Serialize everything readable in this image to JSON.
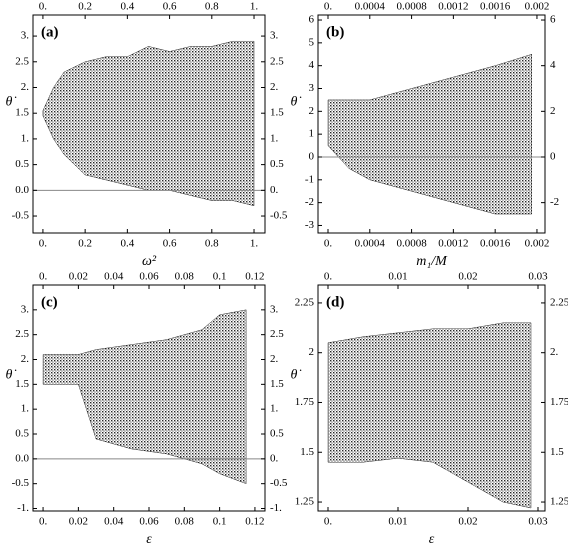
{
  "chart_data": [
    {
      "type": "band",
      "panel_label": "(a)",
      "x_label": "ω²",
      "y_label": "θ̇",
      "color": "#000000",
      "reference_line": 0,
      "xlim": [
        -0.047,
        1.052
      ],
      "ylim": [
        -0.83,
        3.41
      ],
      "xticks": [
        {
          "value": 0,
          "label": "0."
        },
        0.2,
        0.4,
        0.6,
        0.8,
        {
          "value": 1,
          "label": "1."
        }
      ],
      "x2ticks": [
        {
          "value": 0,
          "label": "0."
        },
        0.2,
        0.4,
        0.6,
        0.8,
        {
          "value": 1,
          "label": "1."
        }
      ],
      "yticks": [
        -0.5,
        {
          "value": 0,
          "label": "0.0"
        },
        0.5,
        {
          "value": 1,
          "label": "1."
        },
        1.5,
        {
          "value": 2,
          "label": "2."
        },
        2.5,
        {
          "value": 3,
          "label": "3."
        }
      ],
      "y2ticks": [
        -0.5,
        {
          "value": 0,
          "label": "0."
        },
        0.5,
        {
          "value": 1,
          "label": "1."
        },
        1.5,
        {
          "value": 2,
          "label": "2."
        },
        2.5,
        {
          "value": 3,
          "label": "3."
        }
      ],
      "x": [
        0,
        0.05,
        0.1,
        0.15,
        0.2,
        0.3,
        0.4,
        0.5,
        0.6,
        0.7,
        0.8,
        0.9,
        1.0
      ],
      "upper": [
        1.55,
        2.0,
        2.3,
        2.4,
        2.5,
        2.6,
        2.6,
        2.8,
        2.7,
        2.8,
        2.8,
        2.9,
        2.9
      ],
      "lower": [
        1.45,
        1.0,
        0.7,
        0.5,
        0.3,
        0.2,
        0.1,
        0.0,
        0.0,
        -0.1,
        -0.2,
        -0.2,
        -0.3
      ]
    },
    {
      "type": "band",
      "panel_label": "(b)",
      "x_label": "m₁/M",
      "y_label": "θ̇",
      "color": "#000000",
      "reference_line": 0,
      "xlim": [
        -9.57e-05,
        0.002077
      ],
      "ylim": [
        -3.33,
        6.22
      ],
      "xticks": [
        {
          "value": 0,
          "label": "0."
        },
        0.0004,
        0.0008,
        0.0012,
        0.0016,
        0.002
      ],
      "x2ticks": [
        {
          "value": 0,
          "label": "0."
        },
        0.0004,
        0.0008,
        0.0012,
        0.0016,
        0.002
      ],
      "yticks": [
        -3,
        -2,
        -1,
        0,
        1,
        2,
        3,
        4,
        5,
        6
      ],
      "y2ticks": [
        -2,
        0,
        2,
        4,
        6
      ],
      "x": [
        0,
        0.0002,
        0.0004,
        0.0008,
        0.0012,
        0.0016,
        0.00195
      ],
      "upper": [
        2.5,
        2.5,
        2.5,
        3,
        3.5,
        4,
        4.5
      ],
      "lower": [
        0.5,
        -0.5,
        -1,
        -1.5,
        -2,
        -2.5,
        -2.5
      ]
    },
    {
      "type": "band",
      "panel_label": "(c)",
      "x_label": "ε",
      "y_label": "θ̇",
      "color": "#000000",
      "reference_line": 0,
      "xlim": [
        -0.0057,
        0.1257
      ],
      "ylim": [
        -1.05,
        3.5
      ],
      "xticks": [
        {
          "value": 0,
          "label": "0."
        },
        0.02,
        0.04,
        0.06,
        0.08,
        0.1,
        0.12
      ],
      "x2ticks": [
        {
          "value": 0,
          "label": "0."
        },
        0.02,
        0.04,
        0.06,
        0.08,
        0.1,
        0.12
      ],
      "yticks": [
        {
          "value": -1,
          "label": "-1."
        },
        -0.5,
        {
          "value": 0,
          "label": "0.0"
        },
        0.5,
        {
          "value": 1,
          "label": "1."
        },
        1.5,
        {
          "value": 2,
          "label": "2."
        },
        2.5,
        {
          "value": 3,
          "label": "3."
        }
      ],
      "y2ticks": [
        {
          "value": -1,
          "label": "-1."
        },
        -0.5,
        {
          "value": 0,
          "label": "0."
        },
        0.5,
        {
          "value": 1,
          "label": "1."
        },
        1.5,
        {
          "value": 2,
          "label": "2."
        },
        2.5,
        {
          "value": 3,
          "label": "3."
        }
      ],
      "x": [
        0,
        0.02,
        0.03,
        0.05,
        0.07,
        0.09,
        0.1,
        0.115
      ],
      "upper": [
        2.1,
        2.1,
        2.2,
        2.3,
        2.4,
        2.6,
        2.9,
        3.0
      ],
      "lower": [
        1.5,
        1.5,
        0.4,
        0.2,
        0.1,
        -0.1,
        -0.3,
        -0.5
      ]
    },
    {
      "type": "band",
      "panel_label": "(d)",
      "x_label": "ε",
      "y_label": "θ̇",
      "color": "#000000",
      "xlim": [
        -0.00143,
        0.031
      ],
      "ylim": [
        1.205,
        2.34
      ],
      "xticks": [
        {
          "value": 0,
          "label": "0."
        },
        0.01,
        0.02,
        0.03
      ],
      "x2ticks": [
        {
          "value": 0,
          "label": "0."
        },
        0.01,
        0.02,
        0.03
      ],
      "yticks": [
        1.25,
        1.5,
        1.75,
        2,
        2.25
      ],
      "y2ticks": [
        1.25,
        1.5,
        1.75,
        {
          "value": 2,
          "label": "2."
        },
        2.25
      ],
      "x": [
        0,
        0.005,
        0.01,
        0.015,
        0.02,
        0.025,
        0.029
      ],
      "upper": [
        2.05,
        2.08,
        2.1,
        2.12,
        2.12,
        2.15,
        2.15
      ],
      "lower": [
        1.45,
        1.45,
        1.47,
        1.45,
        1.35,
        1.25,
        1.22
      ]
    }
  ]
}
